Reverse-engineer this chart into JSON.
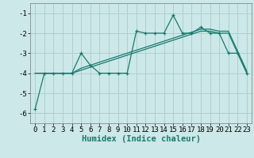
{
  "x": [
    0,
    1,
    2,
    3,
    4,
    5,
    6,
    7,
    8,
    9,
    10,
    11,
    12,
    13,
    14,
    15,
    16,
    17,
    18,
    19,
    20,
    21,
    22,
    23
  ],
  "y_main": [
    -5.8,
    -4.0,
    -4.0,
    -4.0,
    -4.0,
    -3.0,
    -3.6,
    -4.0,
    -4.0,
    -4.0,
    -4.0,
    -1.9,
    -2.0,
    -2.0,
    -2.0,
    -1.1,
    -2.0,
    -2.0,
    -1.7,
    -2.0,
    -2.0,
    -3.0,
    -3.0,
    -4.0
  ],
  "y_trend": [
    -4.0,
    -4.0,
    -4.0,
    -4.0,
    -4.0,
    -3.85,
    -3.7,
    -3.55,
    -3.4,
    -3.25,
    -3.1,
    -2.95,
    -2.8,
    -2.65,
    -2.5,
    -2.35,
    -2.2,
    -2.05,
    -1.9,
    -1.9,
    -2.0,
    -2.0,
    -3.0,
    -4.0
  ],
  "y_trend2": [
    -4.0,
    -4.0,
    -4.0,
    -4.0,
    -4.0,
    -3.75,
    -3.6,
    -3.45,
    -3.3,
    -3.15,
    -3.0,
    -2.85,
    -2.7,
    -2.55,
    -2.4,
    -2.25,
    -2.1,
    -1.95,
    -1.8,
    -1.8,
    -1.9,
    -1.9,
    -2.9,
    -3.9
  ],
  "line_color": "#1a7a6e",
  "bg_color": "#cce8e8",
  "grid_color": "#aacccc",
  "xlabel": "Humidex (Indice chaleur)",
  "xlim": [
    -0.5,
    23.5
  ],
  "ylim": [
    -6.5,
    -0.5
  ],
  "yticks": [
    -6,
    -5,
    -4,
    -3,
    -2,
    -1
  ],
  "xticks": [
    0,
    1,
    2,
    3,
    4,
    5,
    6,
    7,
    8,
    9,
    10,
    11,
    12,
    13,
    14,
    15,
    16,
    17,
    18,
    19,
    20,
    21,
    22,
    23
  ],
  "tick_fontsize": 6.5,
  "xlabel_fontsize": 7.5
}
